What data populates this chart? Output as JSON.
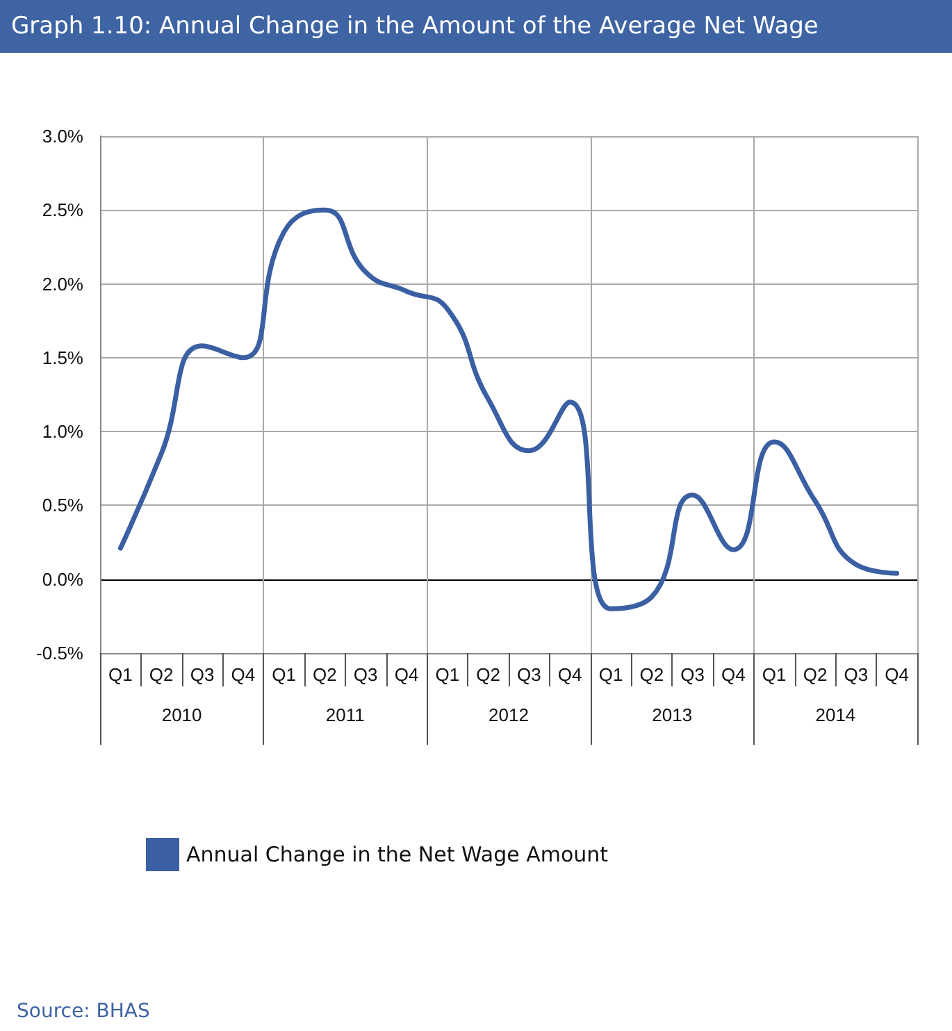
{
  "chart_data": {
    "type": "line",
    "title": "Graph 1.10: Annual Change in the Amount of the Average Net Wage",
    "categories": [
      "Q1",
      "Q2",
      "Q3",
      "Q4",
      "Q1",
      "Q2",
      "Q3",
      "Q4",
      "Q1",
      "Q2",
      "Q3",
      "Q4",
      "Q1",
      "Q2",
      "Q3",
      "Q4",
      "Q1",
      "Q2",
      "Q3",
      "Q4"
    ],
    "series": [
      {
        "name": "Annual Change in the Net Wage Amount",
        "color": "#3b5fa3",
        "values": [
          0.21,
          0.85,
          1.58,
          1.5,
          2.35,
          2.5,
          2.08,
          1.95,
          1.83,
          1.22,
          0.87,
          1.2,
          -0.2,
          -0.12,
          0.57,
          0.2,
          0.93,
          0.53,
          0.1,
          0.04
        ]
      }
    ],
    "ylim": [
      -0.5,
      3.0
    ],
    "yticks": [
      {
        "value": -0.5,
        "label": "-0.5%"
      },
      {
        "value": 0,
        "label": "0.0%"
      },
      {
        "value": 0.5,
        "label": "0.5%"
      },
      {
        "value": 1.0,
        "label": "1.0%"
      },
      {
        "value": 1.5,
        "label": "1.5%"
      },
      {
        "value": 2.0,
        "label": "2.0%"
      },
      {
        "value": 2.5,
        "label": "2.5%"
      },
      {
        "value": 3.0,
        "label": "3.0%"
      }
    ],
    "grid": true,
    "legend": "bottom",
    "marker": "none",
    "line_style": "solid",
    "annotations": [
      "2010",
      "2011",
      "2012",
      "2013",
      "2014",
      "Source: BHAS"
    ]
  }
}
